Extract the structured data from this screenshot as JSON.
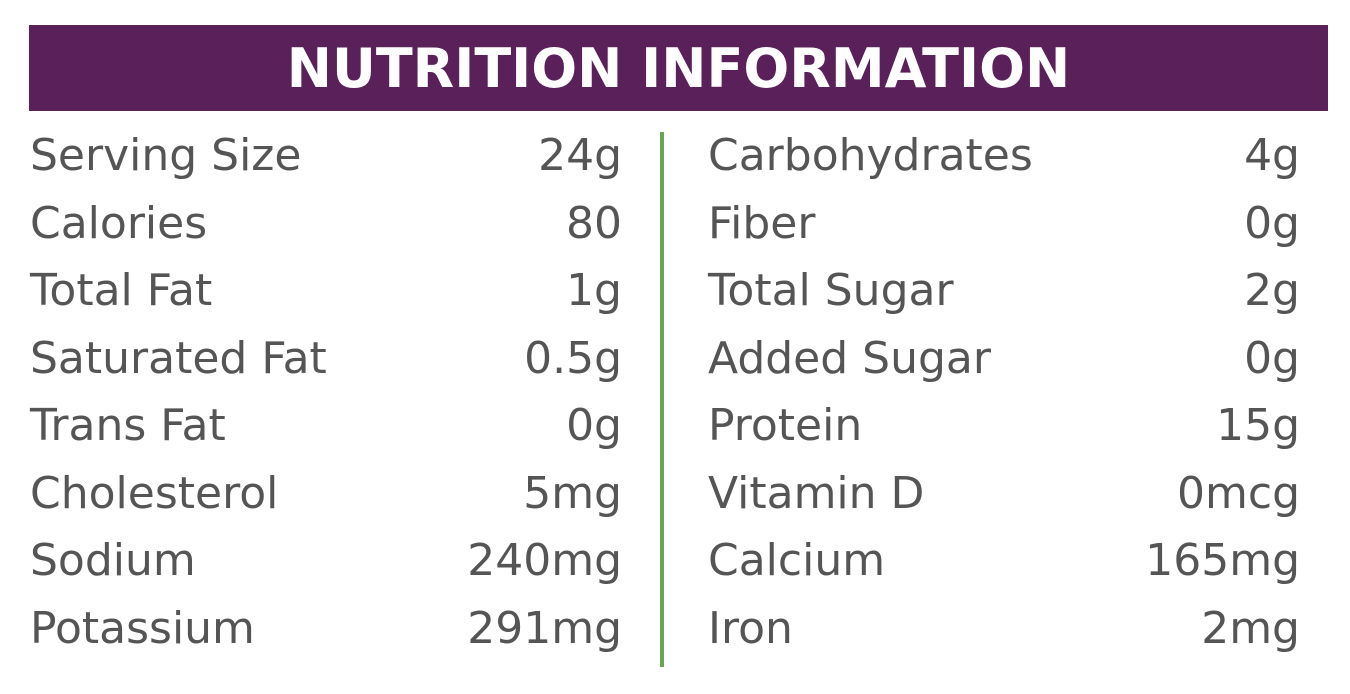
{
  "header": {
    "title": "NUTRITION INFORMATION"
  },
  "table": {
    "left": [
      [
        "Serving Size",
        "24g"
      ],
      [
        "Calories",
        "80"
      ],
      [
        "Total Fat",
        "1g"
      ],
      [
        "Saturated Fat",
        "0.5g"
      ],
      [
        "Trans Fat",
        "0g"
      ],
      [
        "Cholesterol",
        "5mg"
      ],
      [
        "Sodium",
        "240mg"
      ],
      [
        "Potassium",
        "291mg"
      ]
    ],
    "right": [
      [
        "Carbohydrates",
        "4g"
      ],
      [
        "Fiber",
        "0g"
      ],
      [
        "Total Sugar",
        "2g"
      ],
      [
        "Added Sugar",
        "0g"
      ],
      [
        "Protein",
        "15g"
      ],
      [
        "Vitamin D",
        "0mcg"
      ],
      [
        "Calcium",
        "165mg"
      ],
      [
        "Iron",
        "2mg"
      ]
    ]
  }
}
